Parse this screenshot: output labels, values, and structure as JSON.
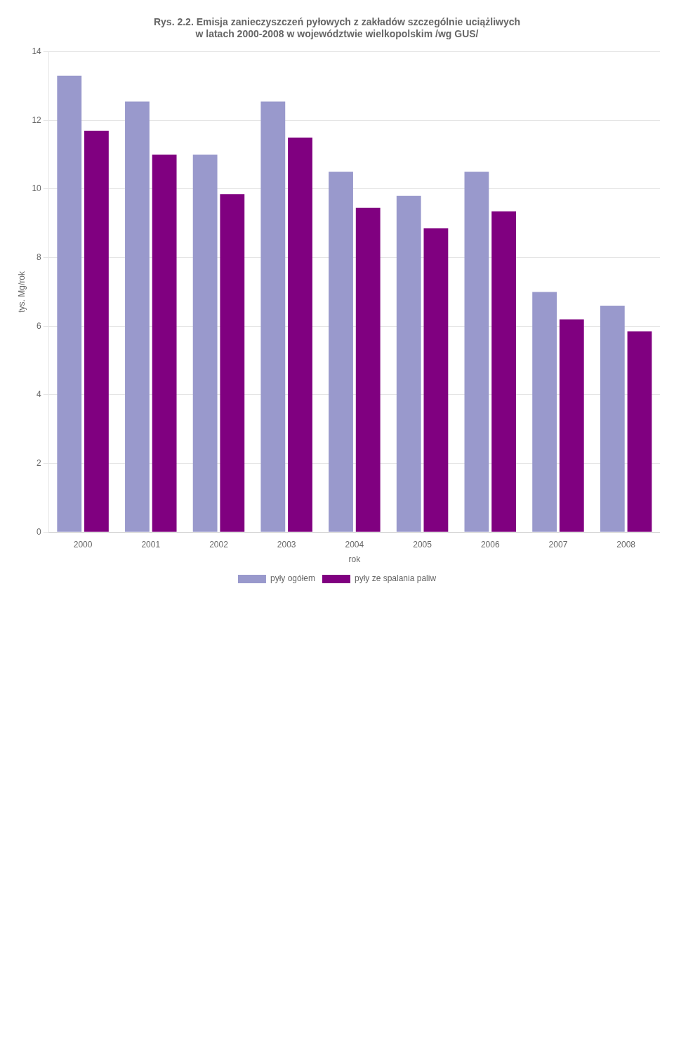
{
  "chart_data": {
    "type": "bar",
    "title": "Rys. 2.2. Emisja zanieczyszczeń pyłowych z zakładów szczególnie uciążliwych\nw latach 2000-2008 w województwie wielkopolskim /wg GUS/",
    "x_label": "rok",
    "y_label": "tys. Mg/rok",
    "categories": [
      "2000",
      "2001",
      "2002",
      "2003",
      "2004",
      "2005",
      "2006",
      "2007",
      "2008"
    ],
    "series": [
      {
        "name": "pyły ogółem",
        "color": "#9999cc",
        "values": [
          13.3,
          12.55,
          11.0,
          12.55,
          10.5,
          9.8,
          10.5,
          7.0,
          6.6
        ]
      },
      {
        "name": "pyły ze spalania paliw",
        "color": "#800080",
        "values": [
          11.7,
          11.0,
          9.85,
          11.5,
          9.45,
          8.85,
          9.35,
          6.2,
          5.85
        ]
      }
    ],
    "ylim": [
      0,
      14
    ],
    "yticks": [
      0,
      2,
      4,
      6,
      8,
      10,
      12,
      14
    ],
    "grid": true,
    "legend": "bottom"
  }
}
